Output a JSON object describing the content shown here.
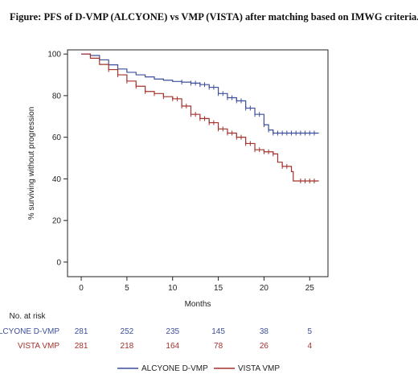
{
  "figure_title": "Figure: PFS of D-VMP (ALCYONE) vs VMP (VISTA) after matching based on IMWG criteria.",
  "colors": {
    "alcyone": "#3c4f9c",
    "vista": "#a3322c",
    "axis": "#222222"
  },
  "chart_data": {
    "type": "line",
    "title": "",
    "xlabel": "Months",
    "ylabel": "% surviving without progression",
    "xlim": [
      -1.5,
      27
    ],
    "ylim": [
      -7,
      102
    ],
    "xticks": [
      0,
      5,
      10,
      15,
      20,
      25
    ],
    "yticks": [
      0,
      20,
      40,
      60,
      80,
      100
    ],
    "grid": false,
    "legend_position": "bottom",
    "series": [
      {
        "name": "ALCYONE D-VMP",
        "color": "#3c4f9c",
        "points": [
          [
            0,
            100
          ],
          [
            1,
            99.3
          ],
          [
            2,
            97.2
          ],
          [
            3,
            94.8
          ],
          [
            4,
            92.8
          ],
          [
            5,
            91.2
          ],
          [
            6,
            90
          ],
          [
            7,
            89
          ],
          [
            8,
            88
          ],
          [
            9,
            87.4
          ],
          [
            10,
            86.8
          ],
          [
            11,
            86.5
          ],
          [
            12,
            86
          ],
          [
            13,
            85.3
          ],
          [
            14,
            84
          ],
          [
            15,
            81
          ],
          [
            16,
            79
          ],
          [
            17,
            77.5
          ],
          [
            18,
            74
          ],
          [
            19,
            71
          ],
          [
            20,
            66
          ],
          [
            20.5,
            63.5
          ],
          [
            21,
            62
          ],
          [
            22,
            62
          ],
          [
            24,
            62
          ],
          [
            26,
            62
          ]
        ],
        "censor_marks": [
          11,
          12,
          12.5,
          13,
          13.5,
          14,
          14.5,
          15,
          15.5,
          16,
          16.5,
          17,
          17.5,
          18,
          18.5,
          19,
          19.5,
          20,
          20.5,
          21,
          21.5,
          22,
          22.5,
          23,
          23.5,
          24,
          24.5,
          25,
          25.5
        ]
      },
      {
        "name": "VISTA VMP",
        "color": "#a3322c",
        "points": [
          [
            0,
            100
          ],
          [
            1,
            98
          ],
          [
            2,
            95
          ],
          [
            3,
            92.5
          ],
          [
            4,
            90
          ],
          [
            5,
            87
          ],
          [
            6,
            84.5
          ],
          [
            7,
            82
          ],
          [
            8,
            81
          ],
          [
            9,
            79.5
          ],
          [
            10,
            78.5
          ],
          [
            11,
            75
          ],
          [
            12,
            71
          ],
          [
            13,
            69
          ],
          [
            14,
            67
          ],
          [
            15,
            64
          ],
          [
            16,
            62
          ],
          [
            17,
            60
          ],
          [
            18,
            57
          ],
          [
            19,
            54
          ],
          [
            20,
            53
          ],
          [
            21,
            52
          ],
          [
            21.5,
            48
          ],
          [
            22,
            46
          ],
          [
            23,
            43.5
          ],
          [
            23.2,
            39
          ],
          [
            24,
            39
          ],
          [
            26,
            39
          ]
        ],
        "censor_marks": [
          3,
          4,
          5,
          6,
          7,
          8,
          9,
          10,
          10.5,
          11,
          11.5,
          12,
          12.5,
          13,
          13.5,
          14,
          14.5,
          15,
          15.5,
          16,
          16.5,
          17,
          17.5,
          18,
          18.5,
          19,
          19.5,
          20,
          20.5,
          21,
          22,
          22.5,
          24,
          24.5,
          25,
          25.5
        ]
      }
    ],
    "risk_table": {
      "heading": "No. at risk",
      "timepoints": [
        0,
        5,
        10,
        15,
        20,
        25
      ],
      "rows": [
        {
          "label": "ALCYONE D-VMP",
          "color": "#3c4f9c",
          "values": [
            "281",
            "252",
            "235",
            "145",
            "38",
            "5"
          ]
        },
        {
          "label": "VISTA VMP",
          "color": "#a3322c",
          "values": [
            "281",
            "218",
            "164",
            "78",
            "26",
            "4"
          ]
        }
      ]
    }
  }
}
